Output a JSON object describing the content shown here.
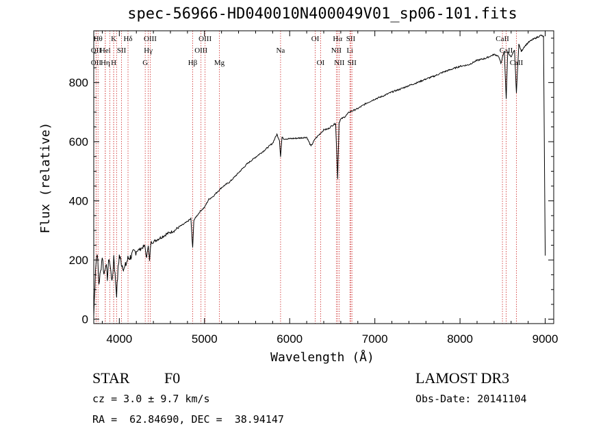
{
  "chart_data": {
    "type": "line",
    "title": "spec-56966-HD040010N400049V01_sp06-101.fits",
    "xlabel": "Wavelength (Å)",
    "ylabel": "Flux (relative)",
    "xlim": [
      3700,
      9100
    ],
    "ylim": [
      -15,
      975
    ],
    "xticks": [
      4000,
      5000,
      6000,
      7000,
      8000,
      9000
    ],
    "yticks": [
      0,
      200,
      400,
      600,
      800
    ],
    "series": [
      {
        "name": "flux",
        "x": [
          3700,
          3720,
          3740,
          3760,
          3780,
          3800,
          3820,
          3840,
          3860,
          3880,
          3900,
          3920,
          3935,
          3950,
          3968,
          3985,
          4000,
          4030,
          4060,
          4101,
          4130,
          4170,
          4200,
          4250,
          4300,
          4320,
          4340,
          4355,
          4370,
          4400,
          4450,
          4500,
          4550,
          4600,
          4650,
          4700,
          4750,
          4800,
          4840,
          4861,
          4875,
          4900,
          4950,
          5000,
          5050,
          5100,
          5150,
          5200,
          5300,
          5400,
          5500,
          5600,
          5700,
          5800,
          5850,
          5880,
          5893,
          5910,
          5930,
          6000,
          6100,
          6200,
          6250,
          6300,
          6350,
          6400,
          6450,
          6500,
          6540,
          6563,
          6580,
          6600,
          6650,
          6700,
          6800,
          6900,
          7000,
          7100,
          7200,
          7300,
          7400,
          7500,
          7600,
          7700,
          7800,
          7900,
          8000,
          8100,
          8200,
          8300,
          8400,
          8450,
          8480,
          8498,
          8520,
          8542,
          8560,
          8600,
          8640,
          8662,
          8690,
          8720,
          8750,
          8800,
          8850,
          8900,
          8950,
          8980,
          9000
        ],
        "values": [
          10,
          170,
          230,
          120,
          160,
          215,
          150,
          190,
          140,
          210,
          160,
          130,
          215,
          150,
          85,
          170,
          215,
          185,
          170,
          205,
          210,
          225,
          230,
          238,
          248,
          205,
          253,
          195,
          258,
          262,
          270,
          278,
          287,
          294,
          300,
          312,
          320,
          330,
          340,
          240,
          335,
          345,
          365,
          378,
          405,
          415,
          430,
          445,
          465,
          495,
          525,
          548,
          570,
          595,
          625,
          605,
          550,
          615,
          610,
          610,
          612,
          615,
          585,
          610,
          625,
          640,
          643,
          655,
          662,
          475,
          665,
          676,
          685,
          700,
          712,
          730,
          744,
          755,
          768,
          778,
          790,
          800,
          812,
          822,
          835,
          845,
          855,
          860,
          875,
          882,
          895,
          890,
          865,
          885,
          905,
          745,
          905,
          885,
          910,
          765,
          930,
          905,
          920,
          935,
          945,
          952,
          960,
          955,
          215
        ]
      }
    ],
    "lines": [
      {
        "wavelength": 3750,
        "label": "Hθ",
        "row": 1
      },
      {
        "wavelength": 3727,
        "label": "OII",
        "row": 2
      },
      {
        "wavelength": 3727,
        "label": "OII",
        "row": 3
      },
      {
        "wavelength": 3835,
        "label": "Hel",
        "row": 2
      },
      {
        "wavelength": 3835,
        "label": "Hη",
        "row": 3
      },
      {
        "wavelength": 3889,
        "label": "",
        "row": 0
      },
      {
        "wavelength": 3934,
        "label": "K",
        "row": 1
      },
      {
        "wavelength": 3934,
        "label": "H",
        "row": 3
      },
      {
        "wavelength": 3968,
        "label": "",
        "row": 0
      },
      {
        "wavelength": 4026,
        "label": "SII",
        "row": 2
      },
      {
        "wavelength": 4102,
        "label": "Hδ",
        "row": 1
      },
      {
        "wavelength": 4304,
        "label": "G",
        "row": 3
      },
      {
        "wavelength": 4340,
        "label": "Hγ",
        "row": 2
      },
      {
        "wavelength": 4363,
        "label": "OIII",
        "row": 1
      },
      {
        "wavelength": 4861,
        "label": "Hβ",
        "row": 3
      },
      {
        "wavelength": 4959,
        "label": "OIII",
        "row": 2
      },
      {
        "wavelength": 5007,
        "label": "OIII",
        "row": 1
      },
      {
        "wavelength": 5175,
        "label": "Mg",
        "row": 3
      },
      {
        "wavelength": 5893,
        "label": "Na",
        "row": 2
      },
      {
        "wavelength": 6300,
        "label": "OI",
        "row": 1
      },
      {
        "wavelength": 6363,
        "label": "OI",
        "row": 3
      },
      {
        "wavelength": 6548,
        "label": "NII",
        "row": 2
      },
      {
        "wavelength": 6563,
        "label": "Hα",
        "row": 1
      },
      {
        "wavelength": 6583,
        "label": "NII",
        "row": 3
      },
      {
        "wavelength": 6707,
        "label": "Li",
        "row": 2
      },
      {
        "wavelength": 6717,
        "label": "SII",
        "row": 1
      },
      {
        "wavelength": 6731,
        "label": "SII",
        "row": 3
      },
      {
        "wavelength": 8498,
        "label": "CaII",
        "row": 1
      },
      {
        "wavelength": 8542,
        "label": "CaII",
        "row": 2
      },
      {
        "wavelength": 8662,
        "label": "CaII",
        "row": 3
      }
    ],
    "grid": false,
    "legend": "none"
  },
  "info": {
    "class": "STAR",
    "subclass": "F0",
    "survey": "LAMOST DR3",
    "cz": "cz = 3.0 ± 9.7 km/s",
    "obs_date": "Obs-Date: 20141104",
    "radec": "RA =  62.84690, DEC =  38.94147"
  }
}
